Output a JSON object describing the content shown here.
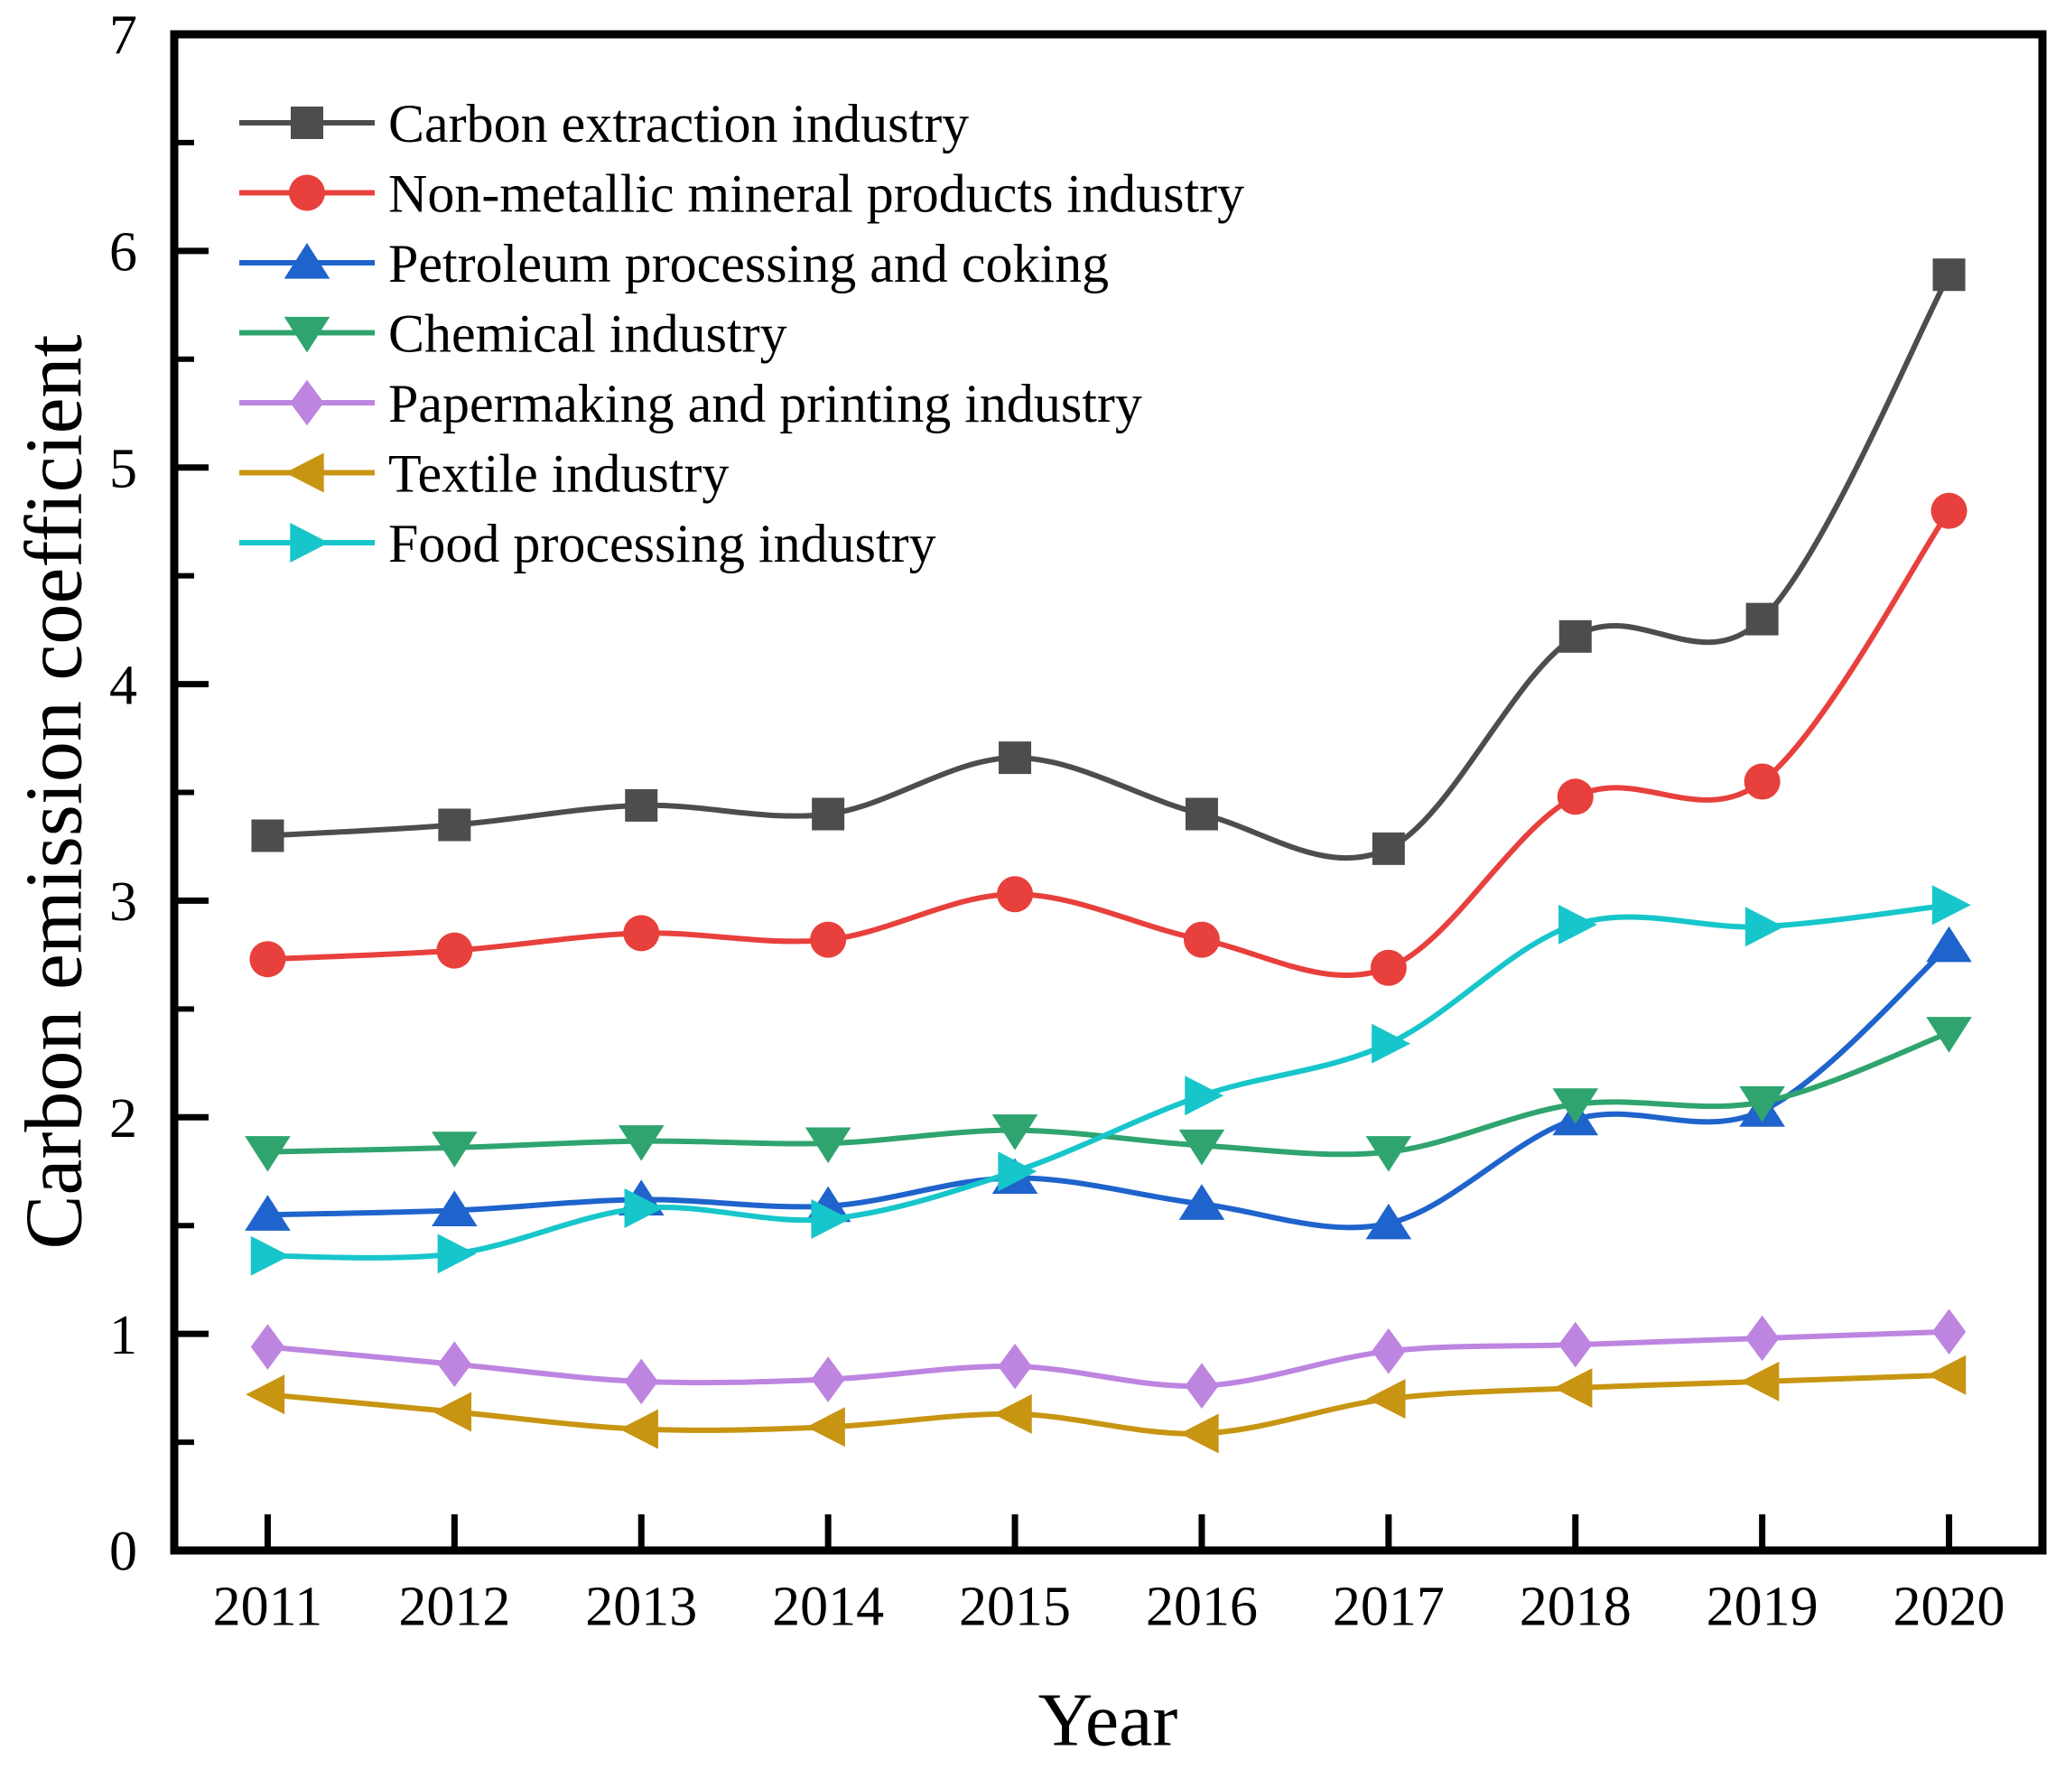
{
  "chart_data": {
    "type": "line",
    "title": "",
    "xlabel": "Year",
    "ylabel": "Carbon emission coefficient",
    "x": [
      2011,
      2012,
      2013,
      2014,
      2015,
      2016,
      2017,
      2018,
      2019,
      2020
    ],
    "xtick_labels": [
      "2011",
      "2012",
      "2013",
      "2014",
      "2015",
      "2016",
      "2017",
      "2018",
      "2019",
      "2020"
    ],
    "ylim": [
      0,
      7
    ],
    "ytick_major": [
      0,
      1,
      2,
      3,
      4,
      5,
      6,
      7
    ],
    "ytick_minor_step": 0.5,
    "grid": false,
    "legend_position": "top-left-inside",
    "axis_color": "#000000",
    "series": [
      {
        "name": "Carbon extraction industry",
        "color": "#4d4d4d",
        "marker": "square",
        "values": [
          3.3,
          3.35,
          3.44,
          3.4,
          3.66,
          3.4,
          3.24,
          4.22,
          4.3,
          5.89
        ]
      },
      {
        "name": "Non-metallic mineral products industry",
        "color": "#e8403c",
        "marker": "circle",
        "values": [
          2.73,
          2.77,
          2.85,
          2.82,
          3.03,
          2.82,
          2.69,
          3.48,
          3.55,
          4.8
        ]
      },
      {
        "name": "Petroleum processing and coking",
        "color": "#1f63cc",
        "marker": "triangle-up",
        "values": [
          1.55,
          1.57,
          1.62,
          1.59,
          1.72,
          1.6,
          1.51,
          1.99,
          2.03,
          2.79
        ]
      },
      {
        "name": "Chemical industry",
        "color": "#2fa46f",
        "marker": "triangle-down",
        "values": [
          1.84,
          1.86,
          1.89,
          1.88,
          1.94,
          1.87,
          1.84,
          2.06,
          2.07,
          2.39
        ]
      },
      {
        "name": "Papermaking and printing industry",
        "color": "#bd85e0",
        "marker": "diamond",
        "values": [
          0.94,
          0.86,
          0.78,
          0.79,
          0.85,
          0.76,
          0.92,
          0.95,
          0.98,
          1.01
        ]
      },
      {
        "name": "Textile industry",
        "color": "#c79512",
        "marker": "triangle-left",
        "values": [
          0.72,
          0.64,
          0.56,
          0.57,
          0.63,
          0.54,
          0.7,
          0.75,
          0.78,
          0.81
        ]
      },
      {
        "name": "Food processing industry",
        "color": "#17c6ca",
        "marker": "triangle-right",
        "values": [
          1.36,
          1.37,
          1.58,
          1.53,
          1.75,
          2.1,
          2.34,
          2.89,
          2.88,
          2.98
        ]
      }
    ]
  }
}
